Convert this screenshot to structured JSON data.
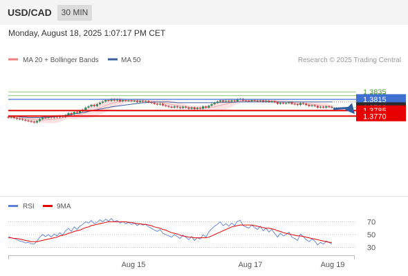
{
  "header": {
    "symbol": "USD/CAD",
    "timeframe": "30 MIN",
    "datetime": "Monday, August 18, 2025 1:07:17 PM CET"
  },
  "colors": {
    "bollinger": "#f08080",
    "ma50": "#3a5d9e",
    "resistance_green": "#8cc96b",
    "resistance_blue": "#3f6fd0",
    "support_red": "#e60000",
    "current_price": "#2b2b2b",
    "candle_up": "#2e8b57",
    "candle_down": "#cc3333",
    "rsi": "#5a7fd6",
    "rsi_ma": "#e60000",
    "arrow": "#2f5d9e"
  },
  "chart_data": [
    {
      "type": "candlestick",
      "title": "",
      "legend": [
        {
          "name": "MA 20 + Bollinger Bands",
          "color": "#f08080"
        },
        {
          "name": "MA 50",
          "color": "#3a5d9e"
        }
      ],
      "legend_position": "top-left",
      "credit": "Research © 2025 Trading Central",
      "ylim": [
        1.3745,
        1.3845
      ],
      "x_ticks": [
        "Aug 15",
        "Aug 17",
        "Aug 19"
      ],
      "levels": [
        {
          "label": "1.3835",
          "value": 1.3835,
          "style": "green"
        },
        {
          "label": "1.3825",
          "value": 1.3825,
          "style": "green"
        },
        {
          "label": "1.3815",
          "value": 1.3815,
          "style": "blue"
        },
        {
          "label": "1.3793",
          "value": 1.3793,
          "style": "current"
        },
        {
          "label": "1.3785",
          "value": 1.3785,
          "style": "red"
        },
        {
          "label": "1.3770",
          "value": 1.377,
          "style": "red"
        }
      ],
      "candles_close": [
        1.3766,
        1.3768,
        1.3765,
        1.3763,
        1.3762,
        1.376,
        1.3758,
        1.3757,
        1.3755,
        1.3753,
        1.3757,
        1.3762,
        1.3766,
        1.3765,
        1.3768,
        1.3766,
        1.3769,
        1.3767,
        1.377,
        1.3768,
        1.3773,
        1.3778,
        1.3775,
        1.3781,
        1.3779,
        1.3784,
        1.3787,
        1.3793,
        1.3796,
        1.38,
        1.3797,
        1.3802,
        1.3806,
        1.3809,
        1.3813,
        1.3811,
        1.3815,
        1.3812,
        1.3814,
        1.381,
        1.3813,
        1.3811,
        1.3812,
        1.381,
        1.3811,
        1.3808,
        1.3811,
        1.3809,
        1.381,
        1.3807,
        1.3806,
        1.3803,
        1.3801,
        1.3803,
        1.3799,
        1.3797,
        1.3795,
        1.3793,
        1.3796,
        1.3794,
        1.3792,
        1.3795,
        1.3793,
        1.379,
        1.3793,
        1.3789,
        1.3792,
        1.379,
        1.3796,
        1.3793,
        1.3798,
        1.3802,
        1.3806,
        1.3809,
        1.3812,
        1.3809,
        1.3811,
        1.3809,
        1.3812,
        1.381,
        1.3815,
        1.3816,
        1.3812,
        1.3811,
        1.381,
        1.3813,
        1.3811,
        1.381,
        1.3812,
        1.3809,
        1.3811,
        1.3808,
        1.381,
        1.3807,
        1.3803,
        1.3806,
        1.3804,
        1.3805,
        1.3807,
        1.3803,
        1.3802,
        1.38,
        1.3805,
        1.3803,
        1.38,
        1.3797,
        1.3799,
        1.3797,
        1.3793,
        1.3795,
        1.3793,
        1.3796,
        1.3795,
        1.3793
      ],
      "ma50": [
        1.3771,
        1.377,
        1.377,
        1.3769,
        1.3768,
        1.3767,
        1.3767,
        1.3766,
        1.3766,
        1.3766,
        1.3766,
        1.3766,
        1.3767,
        1.3767,
        1.3767,
        1.3768,
        1.3768,
        1.3769,
        1.377,
        1.3771,
        1.3772,
        1.3773,
        1.3774,
        1.3776,
        1.3777,
        1.3778,
        1.378,
        1.3781,
        1.3783,
        1.3784,
        1.3786,
        1.3787,
        1.3789,
        1.379,
        1.3792,
        1.3793,
        1.3795,
        1.3796,
        1.3797,
        1.3798,
        1.3799,
        1.38,
        1.3801,
        1.3802,
        1.3803,
        1.3804,
        1.3805,
        1.3806,
        1.3806,
        1.3807,
        1.3807,
        1.3808,
        1.3808,
        1.3808,
        1.3808,
        1.3808,
        1.3808,
        1.3807,
        1.3807,
        1.3806,
        1.3806,
        1.3806,
        1.3806,
        1.3806,
        1.3806,
        1.3806,
        1.3806,
        1.3806,
        1.3806,
        1.3806,
        1.3806,
        1.3806,
        1.3806,
        1.3806,
        1.3807,
        1.3807,
        1.3807,
        1.3807,
        1.3807,
        1.3807,
        1.3808,
        1.3808,
        1.3808,
        1.3808,
        1.3808,
        1.3808,
        1.3808,
        1.3808,
        1.3808,
        1.3808,
        1.3808,
        1.3808,
        1.3808,
        1.3808,
        1.3808,
        1.3808,
        1.3808,
        1.3808,
        1.3808,
        1.3808,
        1.3808,
        1.3808,
        1.3808,
        1.3808,
        1.3808,
        1.3808,
        1.3808,
        1.3808,
        1.3808,
        1.3808,
        1.3808,
        1.3808,
        1.3808,
        1.3808
      ],
      "forecast": {
        "from": 1.3793,
        "to": 1.377
      }
    },
    {
      "type": "line",
      "title": "",
      "legend": [
        {
          "name": "RSI",
          "color": "#5a7fd6"
        },
        {
          "name": "9MA",
          "color": "#e60000"
        }
      ],
      "ylim": [
        20,
        80
      ],
      "y_ticks": [
        "70",
        "50",
        "30"
      ],
      "series": [
        {
          "name": "RSI",
          "values": [
            47,
            45,
            44,
            42,
            40,
            39,
            37,
            38,
            36,
            35,
            40,
            46,
            50,
            47,
            50,
            46,
            51,
            48,
            53,
            49,
            56,
            60,
            55,
            62,
            58,
            63,
            66,
            70,
            68,
            72,
            67,
            69,
            73,
            70,
            74,
            71,
            75,
            70,
            72,
            68,
            70,
            67,
            69,
            66,
            68,
            64,
            67,
            65,
            66,
            62,
            60,
            57,
            55,
            58,
            52,
            50,
            48,
            46,
            50,
            47,
            44,
            49,
            46,
            42,
            47,
            41,
            45,
            43,
            50,
            46,
            54,
            59,
            63,
            66,
            70,
            64,
            67,
            63,
            68,
            64,
            71,
            72,
            64,
            62,
            60,
            65,
            61,
            58,
            63,
            56,
            60,
            54,
            58,
            52,
            46,
            52,
            48,
            50,
            54,
            46,
            44,
            41,
            51,
            47,
            42,
            39,
            43,
            40,
            34,
            38,
            35,
            40,
            38,
            35
          ]
        },
        {
          "name": "9MA",
          "values": [
            45,
            45,
            44,
            44,
            43,
            42,
            41,
            40,
            39,
            39,
            39,
            40,
            41,
            42,
            43,
            44,
            45,
            46,
            48,
            49,
            50,
            52,
            53,
            55,
            56,
            57,
            59,
            61,
            62,
            64,
            65,
            66,
            67,
            68,
            69,
            70,
            70,
            70,
            70,
            70,
            70,
            70,
            69,
            69,
            68,
            67,
            67,
            66,
            66,
            65,
            64,
            62,
            61,
            60,
            58,
            57,
            55,
            53,
            52,
            51,
            49,
            48,
            47,
            46,
            46,
            45,
            45,
            45,
            45,
            45,
            46,
            48,
            50,
            52,
            54,
            56,
            58,
            60,
            62,
            63,
            64,
            65,
            65,
            65,
            65,
            65,
            64,
            63,
            62,
            61,
            60,
            60,
            59,
            58,
            56,
            55,
            53,
            52,
            51,
            50,
            49,
            48,
            48,
            47,
            46,
            45,
            44,
            43,
            42,
            41,
            40,
            39,
            38,
            38
          ]
        }
      ]
    }
  ]
}
